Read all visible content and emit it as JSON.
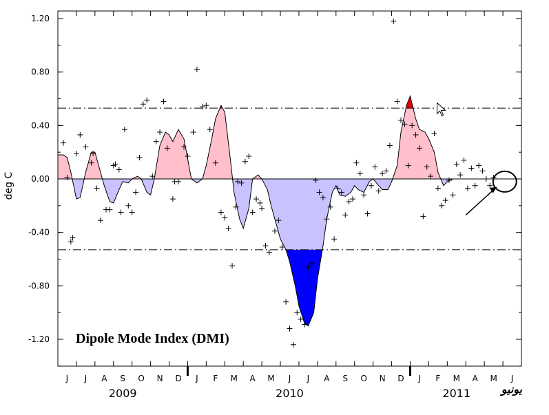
{
  "chart_data": {
    "type": "area",
    "title": "Dipole Mode Index (DMI)",
    "ylabel": "deg C",
    "ylim": [
      -1.4,
      1.2
    ],
    "yticks": [
      "1.20",
      "0.80",
      "0.40",
      "0.00",
      "-0.40",
      "-0.80",
      "-1.20"
    ],
    "ytick_values": [
      1.2,
      0.8,
      0.4,
      0.0,
      -0.4,
      -0.8,
      -1.2
    ],
    "threshold": 0.53,
    "months": [
      "J",
      "J",
      "A",
      "S",
      "O",
      "N",
      "D",
      "J",
      "F",
      "M",
      "A",
      "M",
      "J",
      "J",
      "A",
      "S",
      "O",
      "N",
      "D",
      "J",
      "F",
      "M",
      "A",
      "M",
      "J"
    ],
    "years": [
      {
        "label": "2009",
        "month_index": 3
      },
      {
        "label": "2010",
        "month_index": 12
      },
      {
        "label": "2011",
        "month_index": 21
      }
    ],
    "colors": {
      "positive": "#ffc0cb",
      "negative": "#c8c3ff",
      "strong_positive": "#e00000",
      "strong_negative": "#0000ff"
    },
    "smoothed": {
      "x": [
        0.0,
        0.3,
        0.5,
        0.7,
        1.0,
        1.2,
        1.5,
        1.8,
        2.0,
        2.3,
        2.5,
        2.8,
        3.0,
        3.3,
        3.5,
        3.8,
        4.0,
        4.3,
        4.5,
        4.8,
        5.0,
        5.2,
        5.5,
        5.8,
        6.0,
        6.2,
        6.5,
        6.8,
        7.0,
        7.2,
        7.5,
        7.8,
        8.0,
        8.3,
        8.5,
        8.8,
        9.0,
        9.3,
        9.5,
        9.8,
        10.0,
        10.3,
        10.5,
        10.8,
        11.0,
        11.3,
        11.5,
        11.8,
        12.0,
        12.3,
        12.5,
        12.8,
        13.0,
        13.3,
        13.5,
        13.8,
        14.0,
        14.3,
        14.5,
        14.8,
        15.0,
        15.2,
        15.5,
        15.8,
        16.0,
        16.2,
        16.5,
        16.8,
        17.0,
        17.3,
        17.5,
        17.8,
        18.0,
        18.3,
        18.5,
        18.8,
        19.0,
        19.3,
        19.5,
        19.8,
        20.0,
        20.3,
        20.5,
        20.8,
        21.0,
        21.3,
        21.5,
        21.8,
        22.0,
        22.2,
        22.5,
        22.8,
        23.0,
        23.3,
        23.5,
        23.8,
        24.0,
        24.3,
        24.5
      ],
      "y": [
        0.18,
        0.18,
        0.16,
        0.05,
        -0.15,
        -0.14,
        0.05,
        0.2,
        0.2,
        0.05,
        -0.05,
        -0.17,
        -0.18,
        -0.08,
        -0.02,
        -0.03,
        0.0,
        0.02,
        0.0,
        -0.1,
        -0.12,
        0.0,
        0.25,
        0.35,
        0.33,
        0.28,
        0.37,
        0.3,
        0.15,
        0.0,
        -0.03,
        0.0,
        0.1,
        0.3,
        0.45,
        0.55,
        0.5,
        0.15,
        -0.1,
        -0.3,
        -0.37,
        -0.22,
        0.0,
        0.03,
        0.0,
        -0.08,
        -0.2,
        -0.35,
        -0.45,
        -0.53,
        -0.62,
        -0.8,
        -0.95,
        -1.08,
        -1.1,
        -1.0,
        -0.75,
        -0.5,
        -0.3,
        -0.1,
        -0.05,
        -0.12,
        -0.13,
        -0.1,
        -0.05,
        -0.08,
        -0.1,
        -0.02,
        0.0,
        -0.05,
        -0.08,
        -0.08,
        -0.02,
        0.1,
        0.35,
        0.55,
        0.62,
        0.45,
        0.37,
        0.35,
        0.3,
        0.2,
        0.05,
        -0.05,
        -0.02,
        0.0,
        0.0,
        0.0,
        0.0,
        0.0,
        0.0,
        0.0,
        0.0,
        0.0,
        0.0,
        0.0,
        0.0,
        0.0,
        0.0
      ]
    },
    "monthly_points": {
      "x": [
        0.3,
        0.5,
        0.7,
        0.8,
        1.0,
        1.2,
        1.5,
        1.8,
        1.9,
        2.1,
        2.3,
        2.6,
        2.8,
        3.0,
        3.1,
        3.3,
        3.4,
        3.6,
        3.8,
        4.0,
        4.2,
        4.4,
        4.6,
        4.8,
        5.1,
        5.3,
        5.5,
        5.7,
        5.9,
        6.2,
        6.3,
        6.5,
        6.8,
        7.0,
        7.3,
        7.5,
        7.8,
        8.0,
        8.2,
        8.5,
        8.8,
        9.0,
        9.2,
        9.4,
        9.6,
        9.7,
        9.9,
        10.1,
        10.3,
        10.5,
        10.7,
        10.9,
        11.0,
        11.2,
        11.4,
        11.7,
        11.9,
        12.1,
        12.3,
        12.5,
        12.7,
        12.9,
        13.1,
        13.3,
        13.5,
        13.7,
        13.9,
        14.1,
        14.3,
        14.5,
        14.7,
        14.9,
        15.1,
        15.3,
        15.5,
        15.7,
        15.9,
        16.1,
        16.3,
        16.5,
        16.7,
        16.9,
        17.1,
        17.3,
        17.5,
        17.7,
        17.9,
        18.1,
        18.3,
        18.5,
        18.7,
        18.9,
        19.1,
        19.3,
        19.5,
        19.7,
        19.9,
        20.1,
        20.3,
        20.5,
        20.7,
        20.9,
        21.1,
        21.3,
        21.5,
        21.7,
        21.9,
        22.1,
        22.3,
        22.5,
        22.7,
        22.9,
        23.1,
        23.3,
        23.5
      ],
      "y": [
        0.27,
        0.01,
        -0.47,
        -0.44,
        0.19,
        0.33,
        0.24,
        0.12,
        0.19,
        -0.07,
        -0.31,
        -0.23,
        -0.23,
        0.1,
        0.11,
        0.07,
        -0.25,
        0.37,
        -0.2,
        -0.25,
        -0.1,
        0.16,
        0.56,
        0.59,
        0.02,
        0.28,
        0.35,
        0.58,
        0.23,
        -0.15,
        -0.02,
        -0.02,
        0.24,
        0.17,
        0.35,
        0.82,
        0.54,
        0.55,
        0.37,
        0.12,
        -0.25,
        -0.29,
        -0.37,
        -0.65,
        -0.21,
        -0.02,
        -0.03,
        0.13,
        0.17,
        -0.25,
        -0.15,
        -0.18,
        -0.22,
        -0.5,
        -0.55,
        -0.39,
        -0.31,
        -0.51,
        -0.92,
        -1.12,
        -1.24,
        -1.0,
        -1.05,
        -1.09,
        -0.66,
        -0.63,
        -0.01,
        -0.1,
        -0.14,
        -0.3,
        -0.21,
        -0.45,
        -0.07,
        -0.1,
        -0.27,
        -0.17,
        -0.15,
        0.12,
        0.04,
        -0.12,
        -0.26,
        -0.05,
        0.09,
        -0.09,
        0.04,
        0.06,
        0.25,
        1.18,
        0.58,
        0.44,
        0.41,
        0.1,
        0.4,
        0.33,
        0.23,
        -0.28,
        0.09,
        0.02,
        0.34,
        -0.07,
        -0.2,
        -0.16,
        -0.01,
        -0.12,
        0.11,
        0.03,
        0.14,
        -0.07,
        0.08,
        -0.05,
        0.1,
        0.06,
        0.0,
        -0.05,
        0.01
      ]
    }
  },
  "signature": "یونیو"
}
